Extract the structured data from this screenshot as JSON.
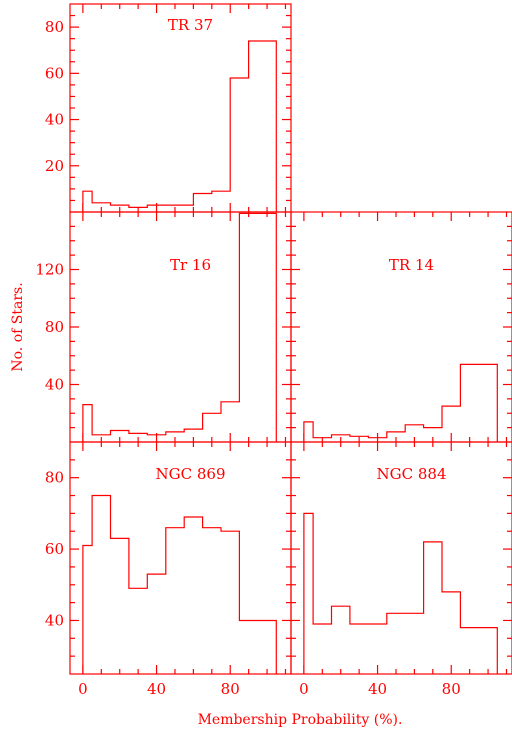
{
  "colors": {
    "ink": "#ff0000",
    "background": "#ffffff"
  },
  "labels": {
    "ylabel": "No. of Stars.",
    "xlabel": "Membership Probability (%)."
  },
  "chart_data": [
    {
      "type": "bar",
      "style": "step-histogram",
      "title": "TR 37",
      "bin_edges": [
        0,
        5,
        10,
        15,
        20,
        25,
        30,
        35,
        40,
        45,
        50,
        55,
        60,
        65,
        70,
        75,
        80,
        85,
        90,
        95,
        100,
        105
      ],
      "counts": [
        9,
        4,
        4,
        3,
        3,
        2,
        2,
        3,
        3,
        3,
        3,
        3,
        8,
        8,
        9,
        9,
        58,
        58,
        74,
        74,
        74
      ],
      "xlim": [
        -7,
        113
      ],
      "ylim": [
        0,
        90
      ],
      "yticks": [
        20,
        40,
        60,
        80
      ],
      "xticks": [
        0,
        40,
        80
      ]
    },
    {
      "type": "bar",
      "style": "step-histogram",
      "title": "Tr 16",
      "bin_edges": [
        0,
        5,
        10,
        15,
        20,
        25,
        30,
        35,
        40,
        45,
        50,
        55,
        60,
        65,
        70,
        75,
        80,
        85,
        90,
        95,
        100,
        105
      ],
      "counts": [
        26,
        5,
        5,
        8,
        8,
        6,
        6,
        5,
        5,
        7,
        7,
        9,
        9,
        20,
        20,
        28,
        28,
        159,
        159,
        159,
        159
      ],
      "xlim": [
        -7,
        113
      ],
      "ylim": [
        0,
        160
      ],
      "yticks": [
        40,
        80,
        120
      ],
      "xticks": [
        0,
        40,
        80
      ]
    },
    {
      "type": "bar",
      "style": "step-histogram",
      "title": "TR 14",
      "bin_edges": [
        0,
        5,
        10,
        15,
        20,
        25,
        30,
        35,
        40,
        45,
        50,
        55,
        60,
        65,
        70,
        75,
        80,
        85,
        90,
        95,
        100,
        105
      ],
      "counts": [
        14,
        3,
        3,
        5,
        5,
        4,
        4,
        3,
        3,
        7,
        7,
        12,
        12,
        10,
        10,
        25,
        25,
        54,
        54,
        54,
        54
      ],
      "xlim": [
        -7,
        113
      ],
      "ylim": [
        0,
        160
      ],
      "yticks": [
        40,
        80,
        120
      ],
      "xticks": [
        0,
        40,
        80
      ]
    },
    {
      "type": "bar",
      "style": "step-histogram",
      "title": "NGC 869",
      "bin_edges": [
        0,
        5,
        10,
        15,
        20,
        25,
        30,
        35,
        40,
        45,
        50,
        55,
        60,
        65,
        70,
        75,
        80,
        85,
        90,
        95,
        100,
        105
      ],
      "counts": [
        61,
        75,
        75,
        63,
        63,
        49,
        49,
        53,
        53,
        66,
        66,
        69,
        69,
        66,
        66,
        65,
        65,
        40,
        40,
        40,
        40
      ],
      "xlim": [
        -7,
        113
      ],
      "ylim": [
        25,
        90
      ],
      "yticks": [
        40,
        60,
        80
      ],
      "xticks": [
        0,
        40,
        80
      ]
    },
    {
      "type": "bar",
      "style": "step-histogram",
      "title": "NGC 884",
      "bin_edges": [
        0,
        5,
        10,
        15,
        20,
        25,
        30,
        35,
        40,
        45,
        50,
        55,
        60,
        65,
        70,
        75,
        80,
        85,
        90,
        95,
        100,
        105
      ],
      "counts": [
        70,
        39,
        39,
        44,
        44,
        39,
        39,
        39,
        39,
        42,
        42,
        42,
        42,
        62,
        62,
        48,
        48,
        38,
        38,
        38,
        38
      ],
      "xlim": [
        -7,
        113
      ],
      "ylim": [
        25,
        90
      ],
      "yticks": [
        40,
        60,
        80
      ],
      "xticks": [
        0,
        40,
        80
      ]
    }
  ]
}
